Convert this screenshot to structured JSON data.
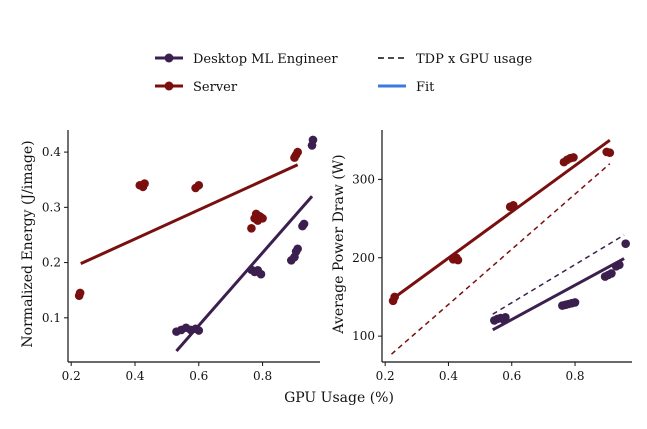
{
  "legend": {
    "items": [
      {
        "label": "Desktop ML Engineer",
        "color": "#3b1f4e",
        "kind": "line-point"
      },
      {
        "label": "TDP x GPU usage",
        "color": "#111111",
        "kind": "dashed"
      },
      {
        "label": "Server",
        "color": "#7a0f0f",
        "kind": "line-point"
      },
      {
        "label": "Fit",
        "color": "#3a7be0",
        "kind": "line"
      }
    ]
  },
  "shared_xlabel": "GPU Usage (%)",
  "chart_data": [
    {
      "type": "scatter",
      "title": "",
      "xlabel": "GPU Usage (%)",
      "ylabel": "Normalized Energy (J/image)",
      "xlim": [
        0.19,
        0.98
      ],
      "ylim": [
        0.02,
        0.44
      ],
      "xticks": [
        0.2,
        0.4,
        0.6,
        0.8
      ],
      "xtick_labels": [
        "0.2",
        "0.4",
        "0.6",
        "0.8"
      ],
      "yticks": [
        0.1,
        0.2,
        0.3,
        0.4
      ],
      "ytick_labels": [
        "0.1",
        "0.2",
        "0.3",
        "0.4"
      ],
      "series": [
        {
          "name": "Desktop ML Engineer",
          "color": "#3b1f4e",
          "points": [
            [
              0.53,
              0.075
            ],
            [
              0.545,
              0.078
            ],
            [
              0.56,
              0.082
            ],
            [
              0.575,
              0.078
            ],
            [
              0.59,
              0.08
            ],
            [
              0.6,
              0.077
            ],
            [
              0.765,
              0.187
            ],
            [
              0.775,
              0.183
            ],
            [
              0.785,
              0.186
            ],
            [
              0.795,
              0.179
            ],
            [
              0.89,
              0.204
            ],
            [
              0.9,
              0.21
            ],
            [
              0.905,
              0.22
            ],
            [
              0.91,
              0.225
            ],
            [
              0.925,
              0.266
            ],
            [
              0.93,
              0.27
            ],
            [
              0.955,
              0.412
            ],
            [
              0.958,
              0.422
            ]
          ],
          "fit": [
            [
              0.53,
              0.04
            ],
            [
              0.955,
              0.32
            ]
          ]
        },
        {
          "name": "Server",
          "color": "#7a0f0f",
          "points": [
            [
              0.225,
              0.14
            ],
            [
              0.228,
              0.145
            ],
            [
              0.415,
              0.34
            ],
            [
              0.425,
              0.337
            ],
            [
              0.43,
              0.343
            ],
            [
              0.59,
              0.335
            ],
            [
              0.6,
              0.34
            ],
            [
              0.765,
              0.262
            ],
            [
              0.775,
              0.28
            ],
            [
              0.78,
              0.288
            ],
            [
              0.785,
              0.276
            ],
            [
              0.79,
              0.284
            ],
            [
              0.795,
              0.282
            ],
            [
              0.8,
              0.28
            ],
            [
              0.9,
              0.39
            ],
            [
              0.905,
              0.395
            ],
            [
              0.91,
              0.4
            ]
          ],
          "fit": [
            [
              0.23,
              0.198
            ],
            [
              0.91,
              0.377
            ]
          ]
        }
      ]
    },
    {
      "type": "scatter",
      "title": "",
      "xlabel": "GPU Usage (%)",
      "ylabel": "Average Power Draw (W)",
      "xlim": [
        0.19,
        0.98
      ],
      "ylim": [
        67,
        363
      ],
      "xticks": [
        0.2,
        0.4,
        0.6,
        0.8
      ],
      "xtick_labels": [
        "0.2",
        "0.4",
        "0.6",
        "0.8"
      ],
      "yticks": [
        100,
        200,
        300
      ],
      "ytick_labels": [
        "100",
        "200",
        "300"
      ],
      "series": [
        {
          "name": "Desktop ML Engineer",
          "color": "#3b1f4e",
          "points": [
            [
              0.545,
              120
            ],
            [
              0.555,
              122
            ],
            [
              0.565,
              123
            ],
            [
              0.575,
              121
            ],
            [
              0.58,
              124
            ],
            [
              0.76,
              139
            ],
            [
              0.77,
              140
            ],
            [
              0.78,
              141
            ],
            [
              0.79,
              142
            ],
            [
              0.8,
              143
            ],
            [
              0.895,
              176
            ],
            [
              0.905,
              178
            ],
            [
              0.915,
              180
            ],
            [
              0.93,
              189
            ],
            [
              0.94,
              191
            ],
            [
              0.96,
              218
            ]
          ],
          "fit": [
            [
              0.54,
              108
            ],
            [
              0.955,
              199
            ]
          ]
        },
        {
          "name": "Server",
          "color": "#7a0f0f",
          "points": [
            [
              0.225,
              145
            ],
            [
              0.23,
              150
            ],
            [
              0.415,
              198
            ],
            [
              0.425,
              200
            ],
            [
              0.43,
              197
            ],
            [
              0.595,
              265
            ],
            [
              0.605,
              267
            ],
            [
              0.765,
              322
            ],
            [
              0.775,
              325
            ],
            [
              0.785,
              327
            ],
            [
              0.795,
              328
            ],
            [
              0.9,
              335
            ],
            [
              0.91,
              334
            ]
          ],
          "fit": [
            [
              0.225,
              148
            ],
            [
              0.91,
              350
            ]
          ]
        }
      ],
      "tdp_lines": [
        {
          "name": "Desktop ML Engineer TDP x GPU usage",
          "color": "#3b1f4e",
          "points": [
            [
              0.54,
              128
            ],
            [
              0.955,
              229
            ]
          ]
        },
        {
          "name": "Server TDP x GPU usage",
          "color": "#7a0f0f",
          "points": [
            [
              0.22,
              77
            ],
            [
              0.91,
              320
            ]
          ]
        }
      ]
    }
  ]
}
